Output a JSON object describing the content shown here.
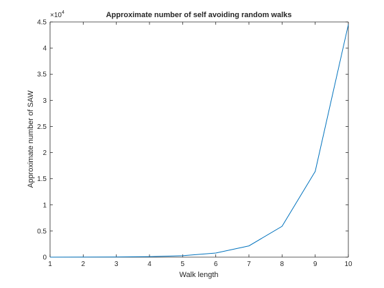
{
  "chart_data": {
    "type": "line",
    "title": "Approximate number of self avoiding random walks",
    "xlabel": "Walk length",
    "ylabel": "Approximate number of SAW",
    "xlim": [
      1,
      10
    ],
    "ylim": [
      0,
      4.5
    ],
    "x_ticks": [
      1,
      2,
      3,
      4,
      5,
      6,
      7,
      8,
      9,
      10
    ],
    "y_ticks": [
      0,
      0.5,
      1,
      1.5,
      2,
      2.5,
      3,
      3.5,
      4,
      4.5
    ],
    "y_tick_labels": [
      "0",
      "0.5",
      "1",
      "1.5",
      "2",
      "2.5",
      "3",
      "3.5",
      "4",
      "4.5"
    ],
    "y_exponent_base": "×10",
    "y_exponent_power": "4",
    "grid": false,
    "line_color": "#0072BD",
    "series": [
      {
        "x": [
          1,
          2,
          3,
          4,
          5,
          6,
          7,
          8,
          9,
          10
        ],
        "values": [
          0.0004,
          0.0012,
          0.0036,
          0.01,
          0.028,
          0.078,
          0.215,
          0.59,
          1.64,
          4.45
        ]
      }
    ]
  }
}
